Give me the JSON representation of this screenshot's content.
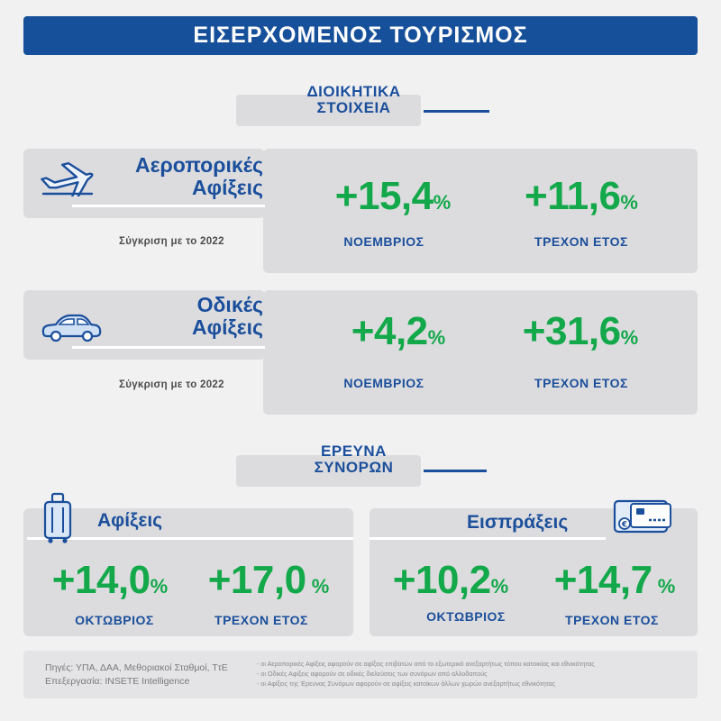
{
  "header": {
    "title": "ΕΙΣΕΡΧΟΜΕΝΟΣ ΤΟΥΡΙΣΜΟΣ"
  },
  "admin_section": {
    "line1": "ΔΙΟΙΚΗΤΙΚΑ",
    "line2": "ΣΤΟΙΧΕΙΑ"
  },
  "air": {
    "title1": "Αεροπορικές",
    "title2": "Αφίξεις",
    "compare": "Σύγκριση με το 2022",
    "month_value": "+15,4",
    "month_unit": "%",
    "month_label": "ΝΟΕΜΒΡΙΟΣ",
    "ytd_value": "+11,6",
    "ytd_unit": "%",
    "ytd_label": "ΤΡΕΧΟΝ ΕΤΟΣ"
  },
  "road": {
    "title1": "Οδικές",
    "title2": "Αφίξεις",
    "compare": "Σύγκριση με το 2022",
    "month_value": "+4,2",
    "month_unit": "%",
    "month_label": "ΝΟΕΜΒΡΙΟΣ",
    "ytd_value": "+31,6",
    "ytd_unit": "%",
    "ytd_label": "ΤΡΕΧΟΝ ΕΤΟΣ"
  },
  "survey_section": {
    "line1": "ΕΡΕΥΝΑ",
    "line2": "ΣΥΝΟΡΩΝ"
  },
  "arrivals": {
    "title": "Αφίξεις",
    "month_value": "+14,0",
    "month_unit": "%",
    "month_label": "ΟΚΤΩΒΡΙΟΣ",
    "ytd_value": "+17,0",
    "ytd_unit": " %",
    "ytd_label": "ΤΡΕΧΟΝ ΕΤΟΣ"
  },
  "receipts": {
    "title": "Εισπράξεις",
    "month_value": "+10,2",
    "month_unit": "%",
    "month_label": "ΟΚΤΩΒΡΙΟΣ",
    "ytd_value": "+14,7",
    "ytd_unit": " %",
    "ytd_label": "ΤΡΕΧΟΝ ΕΤΟΣ"
  },
  "footer": {
    "sources": "Πηγές:  ΥΠΑ, ΔΑΑ, Μεθοριακοί Σταθμοί, ΤτΕ",
    "processing": "Επεξεργασία:  INSETE Intelligence",
    "note1": "- οι Αεροπορικές Αφίξεις αφορούν σε αφίξεις επιβατών από το εξωτερικό ανεξαρτήτως τόπου κατοικίας και εθνικότητας",
    "note2": "- οι Οδικές Αφίξεις αφορούν σε οδικές διελεύσεις των συνόρων από αλλοδαπούς",
    "note3": "- οι Αφίξεις της Έρευνας Συνόρων αφορούν σε αφίξεις κατοίκων άλλων χωρών ανεξαρτήτως εθνικότητας"
  },
  "colors": {
    "brand_blue": "#17509a",
    "green": "#13a84a",
    "panel_grey": "#dcdcde",
    "background": "#f1f1f2"
  },
  "icons": {
    "air": "airplane-icon",
    "road": "car-icon",
    "arrivals": "suitcase-icon",
    "receipts": "credit-card-icon"
  }
}
